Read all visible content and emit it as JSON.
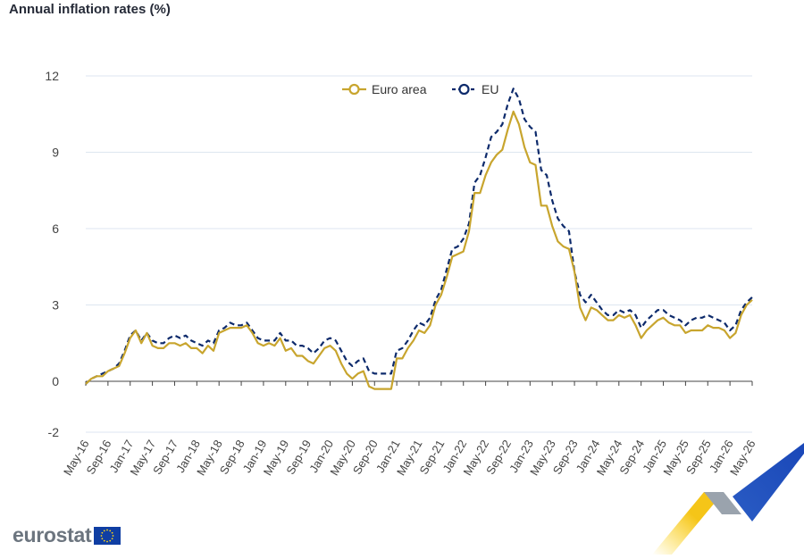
{
  "chart_data": {
    "type": "line",
    "title": "Annual inflation rates (%)",
    "xlabel": "",
    "ylabel": "",
    "ylim": [
      -2,
      12
    ],
    "yticks": [
      -2,
      0,
      3,
      6,
      9,
      12
    ],
    "grid": true,
    "legend_position": "top-center",
    "x_start": "May-16",
    "x_end": "May-26",
    "x_tick_labels": [
      "May-16",
      "Sep-16",
      "Jan-17",
      "May-17",
      "Sep-17",
      "Jan-18",
      "May-18",
      "Sep-18",
      "Jan-19",
      "May-19",
      "Sep-19",
      "Jan-20",
      "May-20",
      "Sep-20",
      "Jan-21",
      "May-21",
      "Sep-21",
      "Jan-22",
      "May-22",
      "Sep-22",
      "Jan-23",
      "May-23",
      "Sep-23",
      "Jan-24",
      "May-24",
      "Sep-24",
      "Jan-25",
      "May-25",
      "Sep-25",
      "Jan-26",
      "May-26"
    ],
    "series": [
      {
        "name": "Euro area",
        "color": "#c8a52e",
        "style": "solid",
        "values": [
          -0.1,
          0.1,
          0.2,
          0.2,
          0.4,
          0.5,
          0.6,
          1.1,
          1.7,
          2.0,
          1.5,
          1.9,
          1.4,
          1.3,
          1.3,
          1.5,
          1.5,
          1.4,
          1.5,
          1.3,
          1.3,
          1.1,
          1.4,
          1.2,
          1.9,
          2.0,
          2.1,
          2.1,
          2.1,
          2.2,
          1.9,
          1.5,
          1.4,
          1.5,
          1.4,
          1.7,
          1.2,
          1.3,
          1.0,
          1.0,
          0.8,
          0.7,
          1.0,
          1.3,
          1.4,
          1.2,
          0.7,
          0.3,
          0.1,
          0.3,
          0.4,
          -0.2,
          -0.3,
          -0.3,
          -0.3,
          -0.3,
          0.9,
          0.9,
          1.3,
          1.6,
          2.0,
          1.9,
          2.2,
          3.0,
          3.4,
          4.1,
          4.9,
          5.0,
          5.1,
          5.9,
          7.4,
          7.4,
          8.1,
          8.6,
          8.9,
          9.1,
          9.9,
          10.6,
          10.1,
          9.2,
          8.6,
          8.5,
          6.9,
          6.9,
          6.1,
          5.5,
          5.3,
          5.2,
          4.3,
          2.9,
          2.4,
          2.9,
          2.8,
          2.6,
          2.4,
          2.4,
          2.6,
          2.5,
          2.6,
          2.2,
          1.7,
          2.0,
          2.2,
          2.4,
          2.5,
          2.3,
          2.2,
          2.2,
          1.9,
          2.0,
          2.0,
          2.0,
          2.2,
          2.1,
          2.1,
          2.0,
          1.7,
          1.9,
          2.6,
          3.0,
          3.2
        ]
      },
      {
        "name": "EU",
        "color": "#0d2a6b",
        "style": "dashed",
        "values": [
          -0.1,
          0.1,
          0.2,
          0.3,
          0.4,
          0.5,
          0.7,
          1.2,
          1.8,
          2.0,
          1.6,
          1.9,
          1.6,
          1.5,
          1.5,
          1.7,
          1.8,
          1.7,
          1.8,
          1.6,
          1.5,
          1.4,
          1.6,
          1.5,
          2.0,
          2.1,
          2.3,
          2.2,
          2.2,
          2.3,
          2.0,
          1.7,
          1.6,
          1.6,
          1.6,
          1.9,
          1.6,
          1.6,
          1.4,
          1.4,
          1.3,
          1.1,
          1.3,
          1.6,
          1.7,
          1.6,
          1.2,
          0.8,
          0.6,
          0.8,
          0.9,
          0.4,
          0.3,
          0.3,
          0.3,
          0.3,
          1.2,
          1.3,
          1.6,
          2.0,
          2.3,
          2.2,
          2.5,
          3.2,
          3.6,
          4.4,
          5.2,
          5.3,
          5.6,
          6.2,
          7.8,
          8.1,
          8.8,
          9.6,
          9.8,
          10.1,
          10.9,
          11.5,
          11.1,
          10.3,
          10.0,
          9.8,
          8.3,
          8.1,
          7.1,
          6.4,
          6.1,
          5.9,
          4.3,
          3.4,
          3.1,
          3.4,
          3.1,
          2.8,
          2.6,
          2.6,
          2.8,
          2.7,
          2.8,
          2.6,
          2.1,
          2.4,
          2.6,
          2.8,
          2.8,
          2.6,
          2.5,
          2.4,
          2.2,
          2.4,
          2.5,
          2.5,
          2.6,
          2.5,
          2.4,
          2.3,
          2.0,
          2.2,
          2.8,
          3.1,
          3.3
        ]
      }
    ]
  },
  "branding": {
    "logo_text": "eurostat",
    "flag_color": "#0f3ea3",
    "star_color": "#ffd617"
  }
}
